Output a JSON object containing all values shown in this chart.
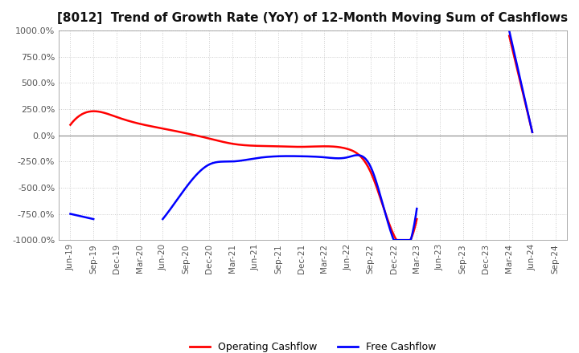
{
  "title": "[8012]  Trend of Growth Rate (YoY) of 12-Month Moving Sum of Cashflows",
  "title_fontsize": 11,
  "ylim": [
    -1000,
    1000
  ],
  "yticks": [
    1000.0,
    750.0,
    500.0,
    250.0,
    0.0,
    -250.0,
    -500.0,
    -750.0,
    -1000.0
  ],
  "ytick_labels": [
    "1000.0%",
    "750.0%",
    "500.0%",
    "250.0%",
    "0.0%",
    "-250.0%",
    "-500.0%",
    "-750.0%",
    "-1000.0%"
  ],
  "x_labels": [
    "Jun-19",
    "Sep-19",
    "Dec-19",
    "Mar-20",
    "Jun-20",
    "Sep-20",
    "Dec-20",
    "Mar-21",
    "Jun-21",
    "Sep-21",
    "Dec-21",
    "Mar-22",
    "Jun-22",
    "Sep-22",
    "Dec-22",
    "Mar-23",
    "Jun-23",
    "Sep-23",
    "Dec-23",
    "Mar-24",
    "Jun-24",
    "Sep-24"
  ],
  "operating_cashflow": [
    100,
    230,
    175,
    110,
    65,
    20,
    -30,
    -80,
    -100,
    -105,
    -110,
    -105,
    -130,
    -350,
    -950,
    -800,
    null,
    null,
    null,
    null,
    null,
    null
  ],
  "operating_cashflow2": [
    null,
    null,
    null,
    null,
    null,
    null,
    null,
    null,
    null,
    null,
    null,
    null,
    null,
    null,
    null,
    null,
    null,
    null,
    null,
    950,
    30,
    null
  ],
  "free_cashflow_seg1": [
    -750,
    -800,
    null,
    null,
    null,
    null,
    null,
    null,
    null,
    null,
    null,
    null,
    null,
    null,
    null,
    null,
    null,
    null,
    null,
    null,
    null,
    null
  ],
  "free_cashflow_seg2": [
    null,
    null,
    null,
    null,
    -800,
    -500,
    -280,
    -250,
    -220,
    -200,
    -200,
    -210,
    -210,
    -300,
    -1000,
    -700,
    null,
    null,
    null,
    null,
    null,
    null
  ],
  "free_cashflow_seg3": [
    null,
    null,
    null,
    null,
    null,
    null,
    null,
    null,
    null,
    null,
    null,
    null,
    null,
    null,
    null,
    null,
    null,
    null,
    null,
    1000,
    30,
    null
  ],
  "operating_color": "#ff0000",
  "free_color": "#0000ff",
  "background_color": "#ffffff",
  "grid_color": "#cccccc",
  "grid_style": "dotted",
  "line_width": 1.8,
  "legend_loc": "lower center",
  "legend_ncol": 2
}
